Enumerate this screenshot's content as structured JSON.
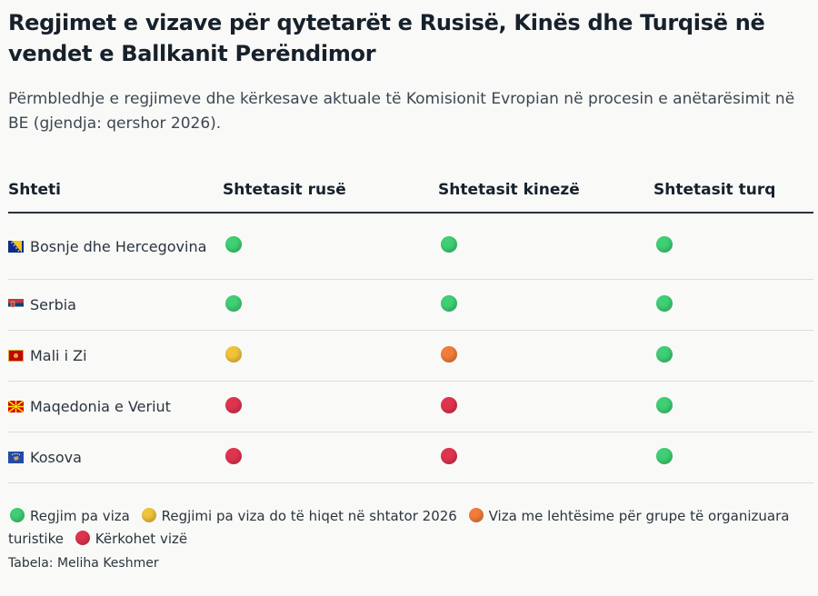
{
  "title": "Regjimet e vizave për qytetarët e Rusisë, Kinës dhe Turqisë në vendet e Ballkanit Perëndimor",
  "subtitle": "Përmbledhje e regjimeve dhe kërkesave aktuale të Komisionit Evropian në procesin e anëtarësimit në BE (gjendja: qershor 2026).",
  "table": {
    "headers": [
      "Shteti",
      "Shtetasit rusë",
      "Shtetasit kinezë",
      "Shtetasit turq"
    ],
    "rows": [
      {
        "country": "Bosnje dhe Hercegovina",
        "flag": "bosnia-flag",
        "statuses": [
          "green",
          "green",
          "green"
        ]
      },
      {
        "country": "Serbia",
        "flag": "serbia-flag",
        "statuses": [
          "green",
          "green",
          "green"
        ]
      },
      {
        "country": "Mali i Zi",
        "flag": "montenegro-flag",
        "statuses": [
          "yellow",
          "orange",
          "green"
        ]
      },
      {
        "country": "Maqedonia e Veriut",
        "flag": "north-macedonia-flag",
        "statuses": [
          "red",
          "red",
          "green"
        ]
      },
      {
        "country": "Kosova",
        "flag": "kosovo-flag",
        "statuses": [
          "red",
          "red",
          "green"
        ]
      }
    ]
  },
  "legend": [
    {
      "color": "#3fcf74",
      "label": "Regjim pa viza"
    },
    {
      "color": "#f0c33a",
      "label": "Regjimi pa viza do të hiqet në shtator 2026"
    },
    {
      "color": "#f27d3a",
      "label": "Viza me lehtësime për grupe të organizuara turistike"
    },
    {
      "color": "#e0344e",
      "label": "Kërkohet vizë"
    }
  ],
  "source": "Tabela: Meliha Keshmer"
}
